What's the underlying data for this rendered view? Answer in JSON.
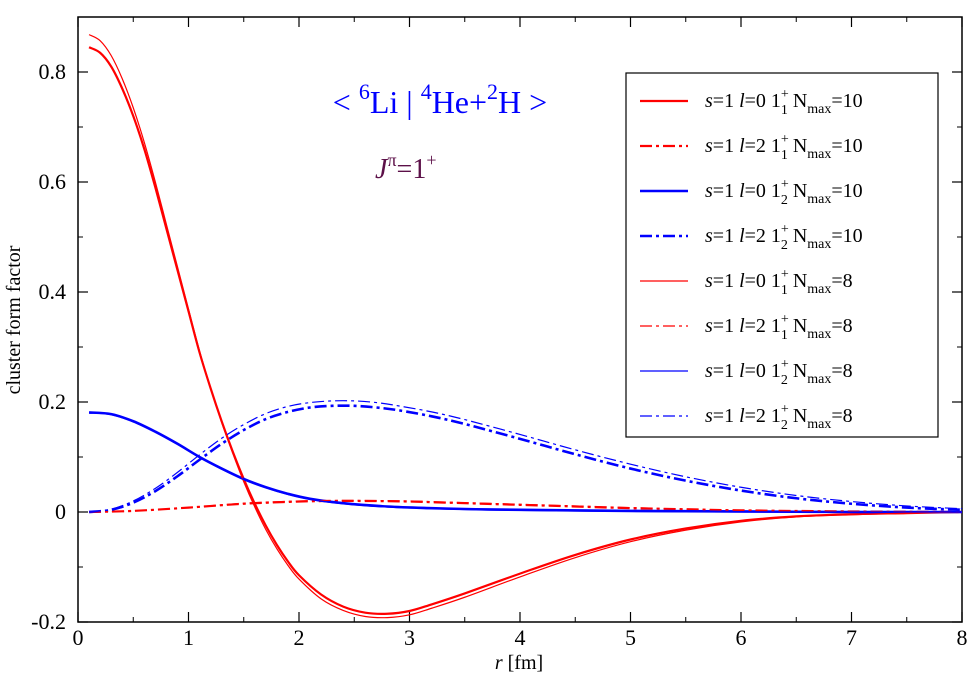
{
  "chart_data": {
    "type": "line",
    "title": "",
    "xlabel": {
      "italic": "r",
      "rest": " [fm]"
    },
    "ylabel": "cluster form factor",
    "xlim": [
      0,
      8
    ],
    "ylim": [
      -0.2,
      0.9
    ],
    "xticks": [
      "0",
      "1",
      "2",
      "3",
      "4",
      "5",
      "6",
      "7",
      "8"
    ],
    "yticks": [
      "-0.2",
      "0",
      "0.2",
      "0.4",
      "0.6",
      "0.8"
    ],
    "xtick_values": [
      0,
      1,
      2,
      3,
      4,
      5,
      6,
      7,
      8
    ],
    "ytick_values": [
      -0.2,
      0,
      0.2,
      0.4,
      0.6,
      0.8
    ],
    "annotation_bra": {
      "lt": "<",
      "li_mass": "6",
      "li": "Li",
      "bar": "|",
      "he_mass": "4",
      "he": "He+",
      "h_mass": "2",
      "h": "H",
      "gt": ">"
    },
    "annotation_jpi": {
      "j": "J",
      "pi": "π",
      "eq": "=1",
      "sup": "+"
    },
    "legend_position": "top-right",
    "series": [
      {
        "name": "s=1 l=0 1+1 Nmax=10",
        "label": {
          "s": "s",
          "s_eq": "=1 ",
          "l": "l",
          "l_eq": "=0  1",
          "state_sup": "+",
          "state_sub": "1",
          "n": "  N",
          "n_sub": "max",
          "n_eq": "=10"
        },
        "color": "#ff0000",
        "style": "solid",
        "width": 2.2,
        "x": [
          0.1,
          0.2,
          0.3,
          0.4,
          0.5,
          0.6,
          0.7,
          0.8,
          0.9,
          1.0,
          1.1,
          1.2,
          1.3,
          1.4,
          1.5,
          1.6,
          1.7,
          1.8,
          1.9,
          2.0,
          2.2,
          2.4,
          2.6,
          2.8,
          3.0,
          3.2,
          3.5,
          4.0,
          4.5,
          5.0,
          5.5,
          6.0,
          6.5,
          7.0,
          7.5,
          8.0
        ],
        "y": [
          0.845,
          0.835,
          0.81,
          0.77,
          0.72,
          0.66,
          0.59,
          0.515,
          0.44,
          0.365,
          0.29,
          0.225,
          0.165,
          0.11,
          0.06,
          0.015,
          -0.025,
          -0.06,
          -0.09,
          -0.115,
          -0.15,
          -0.172,
          -0.183,
          -0.185,
          -0.18,
          -0.168,
          -0.148,
          -0.112,
          -0.078,
          -0.05,
          -0.03,
          -0.016,
          -0.008,
          -0.004,
          -0.002,
          0.0
        ]
      },
      {
        "name": "s=1 l=2 1+1 Nmax=10",
        "label": {
          "s": "s",
          "s_eq": "=1 ",
          "l": "l",
          "l_eq": "=2  1",
          "state_sup": "+",
          "state_sub": "1",
          "n": "  N",
          "n_sub": "max",
          "n_eq": "=10"
        },
        "color": "#ff0000",
        "style": "dashdot",
        "width": 2.2,
        "x": [
          0.1,
          0.5,
          1.0,
          1.5,
          2.0,
          2.3,
          2.6,
          3.0,
          3.5,
          4.0,
          4.5,
          5.0,
          5.5,
          6.0,
          7.0,
          8.0
        ],
        "y": [
          0.0,
          0.002,
          0.008,
          0.015,
          0.019,
          0.02,
          0.02,
          0.019,
          0.016,
          0.013,
          0.01,
          0.007,
          0.005,
          0.003,
          0.001,
          0.0
        ]
      },
      {
        "name": "s=1 l=0 1+2 Nmax=10",
        "label": {
          "s": "s",
          "s_eq": "=1 ",
          "l": "l",
          "l_eq": "=0  1",
          "state_sup": "+",
          "state_sub": "2",
          "n": "  N",
          "n_sub": "max",
          "n_eq": "=10"
        },
        "color": "#0000ff",
        "style": "solid",
        "width": 2.6,
        "x": [
          0.1,
          0.3,
          0.5,
          0.7,
          0.9,
          1.1,
          1.3,
          1.5,
          1.7,
          1.9,
          2.1,
          2.4,
          2.8,
          3.2,
          3.6,
          4.0,
          5.0,
          6.0,
          7.0,
          8.0
        ],
        "y": [
          0.181,
          0.178,
          0.165,
          0.146,
          0.124,
          0.1,
          0.079,
          0.06,
          0.045,
          0.033,
          0.024,
          0.016,
          0.01,
          0.007,
          0.005,
          0.004,
          0.002,
          0.001,
          0.0,
          0.0
        ]
      },
      {
        "name": "s=1 l=2 1+2 Nmax=10",
        "label": {
          "s": "s",
          "s_eq": "=1 ",
          "l": "l",
          "l_eq": "=2  1",
          "state_sup": "+",
          "state_sub": "2",
          "n": "  N",
          "n_sub": "max",
          "n_eq": "=10"
        },
        "color": "#0000ff",
        "style": "dashdot",
        "width": 2.6,
        "x": [
          0.1,
          0.3,
          0.5,
          0.7,
          0.9,
          1.1,
          1.3,
          1.5,
          1.7,
          1.9,
          2.1,
          2.3,
          2.5,
          2.7,
          2.9,
          3.2,
          3.5,
          4.0,
          4.5,
          5.0,
          5.5,
          6.0,
          6.5,
          7.0,
          7.5,
          8.0
        ],
        "y": [
          0.0,
          0.004,
          0.017,
          0.038,
          0.065,
          0.095,
          0.124,
          0.149,
          0.169,
          0.182,
          0.19,
          0.193,
          0.193,
          0.19,
          0.185,
          0.174,
          0.16,
          0.133,
          0.105,
          0.079,
          0.057,
          0.039,
          0.025,
          0.015,
          0.008,
          0.004
        ]
      },
      {
        "name": "s=1 l=0 1+1 Nmax=8",
        "label": {
          "s": "s",
          "s_eq": "=1 ",
          "l": "l",
          "l_eq": "=0  1",
          "state_sup": "+",
          "state_sub": "1",
          "n": "  N",
          "n_sub": "max",
          "n_eq": "=8"
        },
        "color": "#ff0000",
        "style": "solid",
        "width": 1.2,
        "x": [
          0.1,
          0.2,
          0.3,
          0.4,
          0.5,
          0.6,
          0.7,
          0.8,
          0.9,
          1.0,
          1.1,
          1.2,
          1.3,
          1.4,
          1.5,
          1.6,
          1.7,
          1.8,
          1.9,
          2.0,
          2.2,
          2.4,
          2.6,
          2.8,
          3.0,
          3.2,
          3.5,
          4.0,
          4.5,
          5.0,
          5.5,
          6.0,
          6.5,
          7.0,
          7.5,
          8.0
        ],
        "y": [
          0.868,
          0.857,
          0.83,
          0.788,
          0.735,
          0.672,
          0.6,
          0.523,
          0.446,
          0.369,
          0.293,
          0.225,
          0.163,
          0.107,
          0.055,
          0.009,
          -0.032,
          -0.067,
          -0.097,
          -0.122,
          -0.158,
          -0.179,
          -0.19,
          -0.192,
          -0.187,
          -0.175,
          -0.155,
          -0.118,
          -0.083,
          -0.054,
          -0.033,
          -0.018,
          -0.009,
          -0.005,
          -0.002,
          0.0
        ]
      },
      {
        "name": "s=1 l=2 1+1 Nmax=8",
        "label": {
          "s": "s",
          "s_eq": "=1 ",
          "l": "l",
          "l_eq": "=2  1",
          "state_sup": "+",
          "state_sub": "1",
          "n": "  N",
          "n_sub": "max",
          "n_eq": "=8"
        },
        "color": "#ff0000",
        "style": "dashdot",
        "width": 1.2,
        "x": [
          0.1,
          0.5,
          1.0,
          1.5,
          2.0,
          2.3,
          2.6,
          3.0,
          3.5,
          4.0,
          4.5,
          5.0,
          5.5,
          6.0,
          7.0,
          8.0
        ],
        "y": [
          0.0,
          0.002,
          0.008,
          0.016,
          0.02,
          0.021,
          0.021,
          0.02,
          0.017,
          0.014,
          0.011,
          0.008,
          0.005,
          0.003,
          0.001,
          0.0
        ]
      },
      {
        "name": "s=1 l=0 1+2 Nmax=8",
        "label": {
          "s": "s",
          "s_eq": "=1 ",
          "l": "l",
          "l_eq": "=0  1",
          "state_sup": "+",
          "state_sub": "2",
          "n": "  N",
          "n_sub": "max",
          "n_eq": "=8"
        },
        "color": "#0000ff",
        "style": "solid",
        "width": 1.2,
        "x": [
          0.1,
          0.3,
          0.5,
          0.7,
          0.9,
          1.1,
          1.3,
          1.5,
          1.7,
          1.9,
          2.1,
          2.4,
          2.8,
          3.2,
          3.6,
          4.0,
          5.0,
          6.0,
          7.0,
          8.0
        ],
        "y": [
          0.18,
          0.177,
          0.164,
          0.145,
          0.123,
          0.099,
          0.078,
          0.059,
          0.044,
          0.032,
          0.023,
          0.015,
          0.009,
          0.006,
          0.004,
          0.003,
          0.001,
          0.0,
          0.0,
          0.0
        ]
      },
      {
        "name": "s=1 l=2 1+2 Nmax=8",
        "label": {
          "s": "s",
          "s_eq": "=1 ",
          "l": "l",
          "l_eq": "=2  1",
          "state_sup": "+",
          "state_sub": "2",
          "n": "  N",
          "n_sub": "max",
          "n_eq": "=8"
        },
        "color": "#0000ff",
        "style": "dashdot",
        "width": 1.2,
        "x": [
          0.1,
          0.3,
          0.5,
          0.7,
          0.9,
          1.1,
          1.3,
          1.5,
          1.7,
          1.9,
          2.1,
          2.3,
          2.5,
          2.7,
          2.9,
          3.2,
          3.5,
          4.0,
          4.5,
          5.0,
          5.5,
          6.0,
          6.5,
          7.0,
          7.5,
          8.0
        ],
        "y": [
          0.0,
          0.005,
          0.02,
          0.043,
          0.072,
          0.104,
          0.134,
          0.159,
          0.179,
          0.192,
          0.199,
          0.202,
          0.202,
          0.199,
          0.193,
          0.182,
          0.168,
          0.141,
          0.113,
          0.087,
          0.064,
          0.045,
          0.03,
          0.019,
          0.011,
          0.006
        ]
      }
    ]
  },
  "colors": {
    "red": "#ff0000",
    "blue": "#0000ff",
    "annotation_blue": "#0000ff",
    "annotation_purple": "#5c1048"
  }
}
